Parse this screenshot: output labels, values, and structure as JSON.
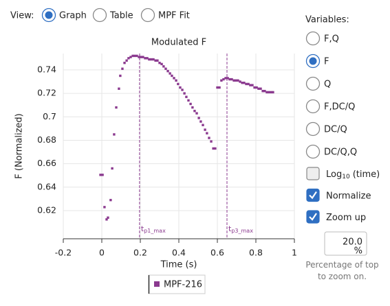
{
  "view": {
    "label": "View:",
    "options": [
      "Graph",
      "Table",
      "MPF Fit"
    ],
    "selected": 0
  },
  "variables": {
    "label": "Variables:",
    "options": [
      "F,Q",
      "F",
      "Q",
      "F,DC/Q",
      "DC/Q",
      "DC/Q,Q"
    ],
    "selected": 1
  },
  "checkboxes": [
    {
      "label": "Log",
      "sub": "10",
      "suffix": "(time)",
      "checked": false
    },
    {
      "label": "Normalize",
      "checked": true
    },
    {
      "label": "Zoom up",
      "checked": true
    }
  ],
  "zoom": {
    "value": "20.0",
    "unit": "%",
    "help": "Percentage of top to zoom on."
  },
  "chart_data": {
    "type": "scatter",
    "title": "Modulated F",
    "x_label": "Time (s)",
    "y_label": "F (Normalized)",
    "xlim": [
      -0.2,
      1
    ],
    "ylim": [
      0.596,
      0.754
    ],
    "xticks": [
      -0.2,
      0,
      0.2,
      0.4,
      0.6,
      0.8,
      1
    ],
    "yticks": [
      0.62,
      0.64,
      0.66,
      0.68,
      0.7,
      0.72,
      0.74
    ],
    "grid": true,
    "annotations": [
      {
        "x": 0.196,
        "label": "t",
        "sub": "p1_max"
      },
      {
        "x": 0.65,
        "label": "t",
        "sub": "p3_max"
      }
    ],
    "series": [
      {
        "name": "MPF-216",
        "color": "#8b3a8f",
        "x": [
          -0.007,
          0.004,
          0.014,
          0.025,
          0.032,
          0.046,
          0.054,
          0.064,
          0.075,
          0.089,
          0.096,
          0.107,
          0.118,
          0.129,
          0.139,
          0.15,
          0.161,
          0.171,
          0.182,
          0.193,
          0.204,
          0.214,
          0.225,
          0.236,
          0.246,
          0.257,
          0.268,
          0.279,
          0.289,
          0.3,
          0.311,
          0.321,
          0.332,
          0.343,
          0.354,
          0.364,
          0.375,
          0.386,
          0.396,
          0.407,
          0.418,
          0.429,
          0.439,
          0.45,
          0.461,
          0.471,
          0.482,
          0.493,
          0.504,
          0.514,
          0.525,
          0.536,
          0.546,
          0.557,
          0.568,
          0.579,
          0.589,
          0.6,
          0.611,
          0.621,
          0.632,
          0.643,
          0.654,
          0.664,
          0.675,
          0.686,
          0.696,
          0.707,
          0.718,
          0.729,
          0.739,
          0.75,
          0.761,
          0.771,
          0.782,
          0.793,
          0.804,
          0.814,
          0.825,
          0.836,
          0.846,
          0.857,
          0.868,
          0.879,
          0.889
        ],
        "values": [
          0.6505,
          0.6505,
          0.623,
          0.6125,
          0.614,
          0.629,
          0.656,
          0.685,
          0.708,
          0.724,
          0.735,
          0.741,
          0.746,
          0.748,
          0.75,
          0.751,
          0.752,
          0.752,
          0.752,
          0.751,
          0.751,
          0.751,
          0.75,
          0.75,
          0.749,
          0.749,
          0.749,
          0.748,
          0.748,
          0.746,
          0.745,
          0.743,
          0.741,
          0.739,
          0.737,
          0.735,
          0.733,
          0.731,
          0.728,
          0.725,
          0.723,
          0.72,
          0.717,
          0.714,
          0.711,
          0.708,
          0.705,
          0.703,
          0.699,
          0.696,
          0.693,
          0.689,
          0.686,
          0.682,
          0.679,
          0.673,
          0.673,
          0.725,
          0.725,
          0.731,
          0.732,
          0.733,
          0.733,
          0.732,
          0.732,
          0.731,
          0.731,
          0.731,
          0.73,
          0.729,
          0.729,
          0.728,
          0.728,
          0.727,
          0.727,
          0.725,
          0.725,
          0.724,
          0.724,
          0.722,
          0.722,
          0.721,
          0.721,
          0.721,
          0.721
        ]
      }
    ]
  }
}
